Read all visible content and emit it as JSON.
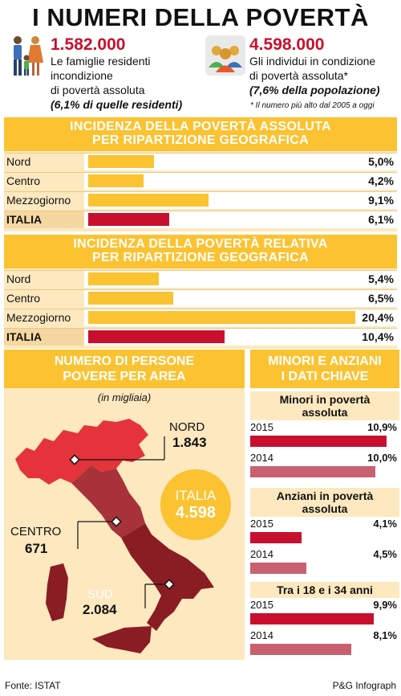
{
  "title": "I NUMERI DELLA POVERTÀ",
  "stat1": {
    "number": "1.582.000",
    "line1": "Le famiglie residenti",
    "line2": "incondizione",
    "line3": "di povertà assoluta",
    "line4": "(6,1% di quelle residenti)"
  },
  "stat2": {
    "number": "4.598.000",
    "line1": "Gli individui in condizione",
    "line2": "di povertà assoluta*",
    "line3": "(7,6% della popolazione)",
    "footnote": "* Il numero più alto dal 2005 a oggi"
  },
  "colors": {
    "yellow": "#fbc232",
    "red": "#c8102e",
    "cream": "#fde8bf"
  },
  "chart_data": [
    {
      "type": "bar",
      "title": "INCIDENZA DELLA POVERTÀ ASSOLUTA PER RIPARTIZIONE GEOGRAFICA",
      "title_line1": "INCIDENZA DELLA POVERTÀ ASSOLUTA",
      "title_line2": "PER RIPARTIZIONE GEOGRAFICA",
      "categories": [
        "Nord",
        "Centro",
        "Mezzogiorno",
        "ITALIA"
      ],
      "values": [
        5.0,
        4.2,
        9.1,
        6.1
      ],
      "value_labels": [
        "5,0%",
        "4,2%",
        "9,1%",
        "6,1%"
      ],
      "unit": "%"
    },
    {
      "type": "bar",
      "title": "INCIDENZA DELLA POVERTÀ RELATIVA PER RIPARTIZIONE GEOGRAFICA",
      "title_line1": "INCIDENZA DELLA POVERTÀ RELATIVA",
      "title_line2": "PER RIPARTIZIONE GEOGRAFICA",
      "categories": [
        "Nord",
        "Centro",
        "Mezzogiorno",
        "ITALIA"
      ],
      "values": [
        5.4,
        6.5,
        20.4,
        10.4
      ],
      "value_labels": [
        "5,4%",
        "6,5%",
        "20,4%",
        "10,4%"
      ],
      "unit": "%"
    },
    {
      "type": "bar",
      "title": "MINORI E ANZIANI I DATI CHIAVE",
      "groups": [
        {
          "name": "Minori in povertà assoluta",
          "categories": [
            "2015",
            "2014"
          ],
          "values": [
            10.9,
            10.0
          ],
          "value_labels": [
            "10,9%",
            "10,0%"
          ]
        },
        {
          "name": "Anziani in povertà assoluta",
          "categories": [
            "2015",
            "2014"
          ],
          "values": [
            4.1,
            4.5
          ],
          "value_labels": [
            "4,1%",
            "4,5%"
          ]
        },
        {
          "name": "Tra i 18 e i 34 anni",
          "categories": [
            "2015",
            "2014"
          ],
          "values": [
            9.9,
            8.1
          ],
          "value_labels": [
            "9,9%",
            "8,1%"
          ]
        }
      ]
    }
  ],
  "map": {
    "title_line1": "NUMERO DI PERSONE",
    "title_line2": "POVERE PER AREA",
    "subtitle": "(in migliaia)",
    "nord": {
      "label": "NORD",
      "value": "1.843"
    },
    "centro": {
      "label": "CENTRO",
      "value": "671"
    },
    "sud": {
      "label": "SUD",
      "value": "2.084"
    },
    "italia": {
      "label": "ITALIA",
      "value": "4.598"
    }
  },
  "key": {
    "title_line1": "MINORI E ANZIANI",
    "title_line2": "I DATI CHIAVE",
    "g1_line1": "Minori in povertà",
    "g1_line2": "assoluta",
    "g2_line1": "Anziani in povertà",
    "g2_line2": "assoluta",
    "g3_line1": "Tra i 18 e i 34 anni"
  },
  "footer": {
    "source": "Fonte: ISTAT",
    "credit": "P&G Infograph"
  }
}
